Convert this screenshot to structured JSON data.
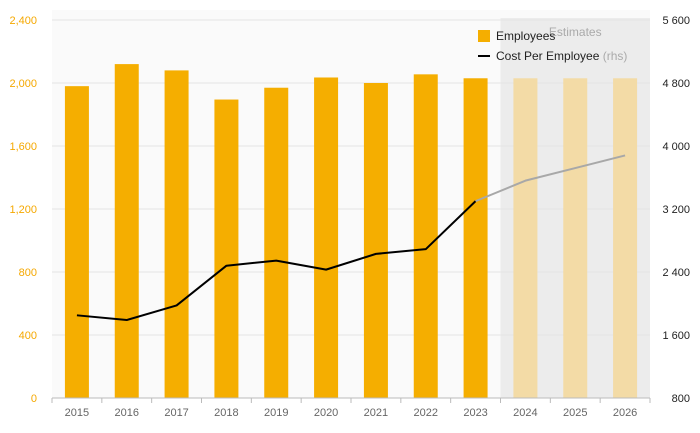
{
  "chart_data": {
    "type": "bar",
    "categories": [
      "2015",
      "2016",
      "2017",
      "2018",
      "2019",
      "2020",
      "2021",
      "2022",
      "2023",
      "2024",
      "2025",
      "2026"
    ],
    "estimate_start_index": 9,
    "shaded_region_label": "Estimates",
    "series": [
      {
        "name": "Employees",
        "type": "bar",
        "axis": "left",
        "color": "#f5ae00",
        "estimate_color": "#f3dba6",
        "values": [
          1980,
          2120,
          2080,
          1895,
          1970,
          2035,
          2000,
          2055,
          2030,
          2030,
          2030,
          2030
        ]
      },
      {
        "name": "Cost Per Employee",
        "name_suffix": "(rhs)",
        "type": "line",
        "axis": "right",
        "color": "#000000",
        "estimate_color": "#a8a8a8",
        "values": [
          1850,
          1790,
          1975,
          2480,
          2545,
          2430,
          2630,
          2690,
          3300,
          3560,
          3720,
          3880
        ]
      }
    ],
    "y_left": {
      "lim": [
        0,
        2400
      ],
      "ticks": [
        "0",
        "400",
        "800",
        "1,200",
        "1,600",
        "2,000",
        "2,400"
      ],
      "values": [
        0,
        400,
        800,
        1200,
        1600,
        2000,
        2400
      ],
      "color": "#f5a800"
    },
    "y_right": {
      "lim": [
        800,
        5600
      ],
      "ticks": [
        "800",
        "1 600",
        "2 400",
        "3 200",
        "4 000",
        "4 800",
        "5 600"
      ],
      "values": [
        800,
        1600,
        2400,
        3200,
        4000,
        4800,
        5600
      ],
      "color": "#222222"
    },
    "grid": true,
    "legend_position": "top-right"
  }
}
